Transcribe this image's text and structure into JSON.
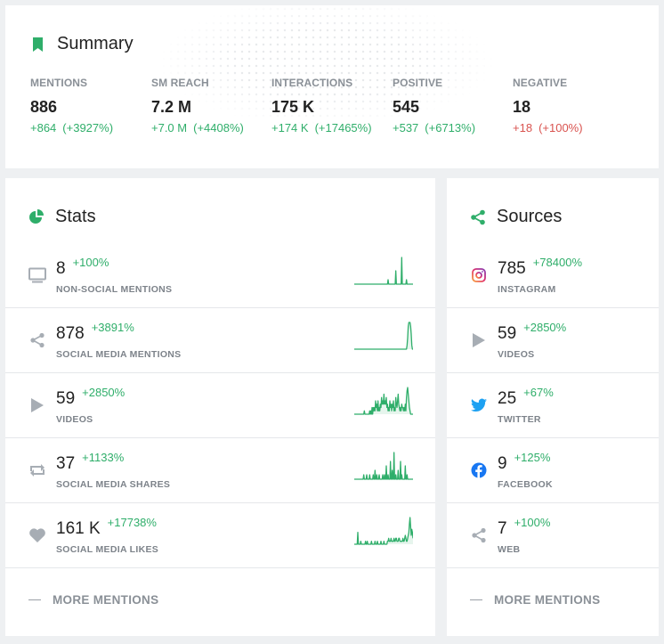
{
  "summary": {
    "title": "Summary",
    "metrics": [
      {
        "label": "MENTIONS",
        "value": "886",
        "change_abs": "+864",
        "change_pct": "(+3927%)",
        "trend": "positive"
      },
      {
        "label": "SM REACH",
        "value": "7.2 M",
        "change_abs": "+7.0 M",
        "change_pct": "(+4408%)",
        "trend": "positive"
      },
      {
        "label": "INTERACTIONS",
        "value": "175 K",
        "change_abs": "+174 K",
        "change_pct": "(+17465%)",
        "trend": "positive"
      },
      {
        "label": "POSITIVE",
        "value": "545",
        "change_abs": "+537",
        "change_pct": "(+6713%)",
        "trend": "positive"
      },
      {
        "label": "NEGATIVE",
        "value": "18",
        "change_abs": "+18",
        "change_pct": "(+100%)",
        "trend": "negative"
      }
    ]
  },
  "stats": {
    "title": "Stats",
    "rows": [
      {
        "value": "8",
        "change": "+100%",
        "label": "NON-SOCIAL MENTIONS",
        "icon": "monitor-icon",
        "spark": [
          0,
          0,
          0,
          0,
          0,
          0,
          0,
          0,
          0,
          0,
          0,
          0,
          0,
          0,
          0,
          0,
          0,
          0,
          0,
          0,
          0,
          0,
          0,
          0,
          0,
          0,
          0,
          0,
          0,
          0,
          0,
          0,
          0,
          0,
          0,
          0,
          0,
          0,
          0,
          0,
          0,
          0,
          0,
          0,
          0,
          0,
          0,
          0,
          0,
          0,
          0,
          0,
          0,
          0,
          0,
          0,
          0,
          1,
          0,
          0,
          0,
          0,
          0,
          0,
          0,
          0,
          0,
          0,
          0,
          0,
          3,
          0,
          0,
          0,
          0,
          0,
          0,
          0,
          0,
          0,
          6,
          0,
          0,
          0,
          0,
          0,
          0,
          0,
          1,
          0,
          0,
          0,
          0,
          0,
          0,
          0,
          0,
          0,
          0,
          0
        ]
      },
      {
        "value": "878",
        "change": "+3891%",
        "label": "SOCIAL MEDIA MENTIONS",
        "icon": "share-icon",
        "spark": [
          0,
          0,
          0,
          0,
          0,
          0,
          0,
          0,
          0,
          0,
          0,
          0,
          0,
          0,
          0,
          0,
          0,
          0,
          0,
          0,
          0,
          0,
          0,
          0,
          0,
          0,
          0,
          0,
          0,
          0,
          0,
          0,
          0,
          0,
          0,
          0,
          0,
          0,
          0,
          0,
          0,
          0,
          0,
          0,
          0,
          0,
          0,
          0,
          0,
          0,
          0,
          0,
          0,
          0,
          0,
          0,
          0,
          0,
          0,
          0,
          0,
          0,
          0,
          0,
          0,
          0,
          0,
          0,
          0,
          0,
          0,
          0,
          0,
          0,
          0,
          0,
          0,
          0,
          0,
          0,
          0,
          0,
          0,
          0,
          0,
          0,
          0,
          0,
          0,
          1,
          3,
          6,
          7,
          7,
          7,
          6,
          4,
          1,
          0,
          0
        ]
      },
      {
        "value": "59",
        "change": "+2850%",
        "label": "VIDEOS",
        "icon": "play-icon",
        "spark": [
          0,
          0,
          0,
          0,
          0,
          0,
          0,
          0,
          0,
          0,
          0,
          0,
          0,
          0,
          0,
          0,
          0,
          1,
          0,
          0,
          0,
          0,
          0,
          0,
          0,
          0,
          1,
          0,
          1,
          0,
          2,
          0,
          2,
          1,
          2,
          1,
          4,
          2,
          3,
          1,
          4,
          1,
          2,
          1,
          3,
          2,
          5,
          3,
          4,
          3,
          6,
          3,
          4,
          3,
          5,
          2,
          3,
          1,
          2,
          1,
          4,
          2,
          3,
          1,
          3,
          2,
          4,
          1,
          2,
          1,
          5,
          3,
          2,
          4,
          6,
          3,
          2,
          1,
          2,
          1,
          3,
          2,
          2,
          1,
          2,
          1,
          3,
          1,
          5,
          7,
          8,
          6,
          4,
          2,
          1,
          0,
          0,
          0,
          0,
          0
        ]
      },
      {
        "value": "37",
        "change": "+1133%",
        "label": "SOCIAL MEDIA SHARES",
        "icon": "retweet-icon",
        "spark": [
          0,
          0,
          0,
          0,
          0,
          0,
          0,
          0,
          0,
          0,
          0,
          0,
          0,
          0,
          0,
          0,
          1,
          0,
          0,
          0,
          0,
          1,
          0,
          0,
          0,
          0,
          1,
          0,
          0,
          0,
          0,
          0,
          1,
          0,
          0,
          2,
          0,
          0,
          1,
          0,
          0,
          0,
          1,
          0,
          0,
          0,
          0,
          0,
          1,
          0,
          0,
          1,
          0,
          0,
          3,
          0,
          0,
          1,
          0,
          0,
          0,
          4,
          0,
          0,
          2,
          0,
          0,
          6,
          0,
          0,
          1,
          0,
          0,
          0,
          2,
          0,
          0,
          0,
          4,
          0,
          1,
          0,
          0,
          0,
          0,
          0,
          3,
          0,
          0,
          1,
          0,
          0,
          0,
          0,
          0,
          0,
          0,
          0,
          0,
          0
        ]
      },
      {
        "value": "161 K",
        "change": "+17738%",
        "label": "SOCIAL MEDIA LIKES",
        "icon": "heart-icon",
        "spark": [
          0,
          0,
          0,
          0,
          0,
          0,
          4,
          0,
          0,
          0,
          0,
          1,
          0,
          0,
          0,
          0,
          0,
          0,
          0,
          1,
          0,
          0,
          1,
          0,
          0,
          0,
          0,
          0,
          0,
          1,
          0,
          0,
          0,
          0,
          0,
          1,
          0,
          0,
          0,
          1,
          0,
          0,
          0,
          0,
          0,
          1,
          0,
          0,
          0,
          0,
          1,
          0,
          0,
          0,
          0,
          0,
          1,
          1,
          2,
          1,
          1,
          1,
          2,
          1,
          1,
          1,
          1,
          2,
          1,
          1,
          2,
          2,
          1,
          1,
          1,
          2,
          2,
          1,
          1,
          1,
          1,
          1,
          2,
          1,
          1,
          2,
          3,
          2,
          1,
          1,
          2,
          3,
          4,
          7,
          9,
          6,
          3,
          5,
          4,
          2
        ]
      }
    ],
    "more_label": "MORE MENTIONS"
  },
  "sources": {
    "title": "Sources",
    "rows": [
      {
        "value": "785",
        "change": "+78400%",
        "label": "INSTAGRAM",
        "icon": "instagram-icon"
      },
      {
        "value": "59",
        "change": "+2850%",
        "label": "VIDEOS",
        "icon": "play-icon"
      },
      {
        "value": "25",
        "change": "+67%",
        "label": "TWITTER",
        "icon": "twitter-icon"
      },
      {
        "value": "9",
        "change": "+125%",
        "label": "FACEBOOK",
        "icon": "facebook-icon"
      },
      {
        "value": "7",
        "change": "+100%",
        "label": "WEB",
        "icon": "share-icon"
      }
    ],
    "more_label": "MORE MENTIONS"
  },
  "colors": {
    "accent": "#2fae6a",
    "negative": "#d9534f",
    "icon_gray": "#a7adb4",
    "twitter": "#1da1f2",
    "facebook": "#1877f2",
    "instagram": "#e1306c"
  }
}
